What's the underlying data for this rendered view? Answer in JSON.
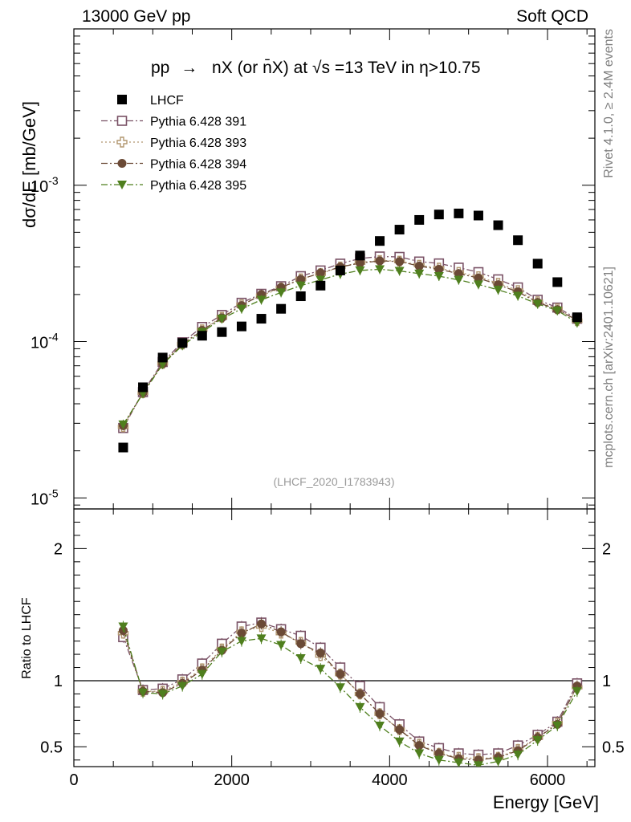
{
  "header": {
    "left": "13000 GeV pp",
    "right": "Soft QCD"
  },
  "side_labels": {
    "rivet": "Rivet 4.1.0, ≥ 2.4M events",
    "mcplots": "mcplots.cern.ch [arXiv:2401.10621]"
  },
  "chart_data": [
    {
      "type": "scatter",
      "title": "pp → nX (or n̄X) at √s=13 TeV in η>10.75",
      "title_parts": {
        "pre": "pp",
        "arrow": "→",
        "process": "nX (or n̄X) at ",
        "sqrt": "√s",
        "energy": "=13 TeV in",
        "eta": "η>10.75"
      },
      "ylabel": "dσ/dE [mb/GeV]",
      "yscale": "log",
      "ylim": [
        8.5e-06,
        0.01
      ],
      "xlim": [
        0,
        6600
      ],
      "ytick_labels": [
        {
          "base": "10",
          "exp": "-5",
          "value": 1e-05
        },
        {
          "base": "10",
          "exp": "-4",
          "value": 0.0001
        },
        {
          "base": "10",
          "exp": "-3",
          "value": 0.001
        }
      ],
      "watermark": "(LHCF_2020_I1783943)",
      "x": [
        625,
        875,
        1125,
        1375,
        1625,
        1875,
        2125,
        2375,
        2625,
        2875,
        3125,
        3375,
        3625,
        3875,
        4125,
        4375,
        4625,
        4875,
        5125,
        5375,
        5625,
        5875,
        6125,
        6375
      ],
      "series": [
        {
          "name": "LHCF",
          "color": "#000000",
          "marker": "filled-square",
          "line": "none",
          "values": [
            2.1e-05,
            5.1e-05,
            7.9e-05,
            9.8e-05,
            0.000109,
            0.000115,
            0.000125,
            0.00014,
            0.000162,
            0.000195,
            0.000228,
            0.000285,
            0.000355,
            0.00044,
            0.00052,
            0.0006,
            0.00065,
            0.00066,
            0.00064,
            0.000555,
            0.000445,
            0.000315,
            0.00024,
            0.000143
          ]
        },
        {
          "name": "Pythia 6.428 391",
          "color": "#7a5266",
          "marker": "open-square",
          "line": "dash-dot",
          "values": [
            2.8e-05,
            4.75e-05,
            7.4e-05,
            9.9e-05,
            0.000124,
            0.000148,
            0.000177,
            0.000202,
            0.000226,
            0.000262,
            0.000285,
            0.000315,
            0.00034,
            0.00035,
            0.000348,
            0.000325,
            0.000316,
            0.000297,
            0.000278,
            0.00025,
            0.000222,
            0.000185,
            0.000165,
            0.00014
          ]
        },
        {
          "name": "Pythia 6.428 393",
          "color": "#b29770",
          "marker": "open-plus",
          "line": "dotted",
          "values": [
            2.85e-05,
            4.7e-05,
            7.25e-05,
            9.65e-05,
            0.000119,
            0.000143,
            0.000172,
            0.000197,
            0.00022,
            0.000252,
            0.000272,
            0.0003,
            0.00032,
            0.00033,
            0.000327,
            0.000308,
            0.000295,
            0.000277,
            0.00026,
            0.000236,
            0.000212,
            0.00018,
            0.000162,
            0.000136
          ]
        },
        {
          "name": "Pythia 6.428 394",
          "color": "#6b4a36",
          "marker": "filled-circle",
          "line": "dash-dot",
          "values": [
            2.9e-05,
            4.7e-05,
            7.2e-05,
            9.6e-05,
            0.000118,
            0.000142,
            0.00017,
            0.0002,
            0.000222,
            0.00025,
            0.000275,
            0.0003,
            0.000318,
            0.000328,
            0.000325,
            0.000304,
            0.00029,
            0.000272,
            0.000255,
            0.000231,
            0.000208,
            0.000178,
            0.00016,
            0.000137
          ]
        },
        {
          "name": "Pythia 6.428 395",
          "color": "#4f7f1e",
          "marker": "filled-triangle-down",
          "line": "dash-dot",
          "values": [
            2.95e-05,
            4.65e-05,
            7.15e-05,
            9.45e-05,
            0.000115,
            0.00014,
            0.000162,
            0.000185,
            0.000206,
            0.000228,
            0.000248,
            0.00027,
            0.000285,
            0.00029,
            0.000283,
            0.000272,
            0.000262,
            0.000248,
            0.000232,
            0.000214,
            0.000196,
            0.000174,
            0.000158,
            0.000132
          ]
        }
      ]
    },
    {
      "type": "scatter",
      "xlabel": "Energy [GeV]",
      "ylabel": "Ratio to LHCF",
      "ylim": [
        0.35,
        2.3
      ],
      "xlim": [
        0,
        6600
      ],
      "reference_line": 1,
      "xticks": [
        0,
        2000,
        4000,
        6000
      ],
      "xtick_labels": [
        "0",
        "2000",
        "4000",
        "6000"
      ],
      "yticks": [
        0.5,
        1,
        2
      ],
      "ytick_labels": [
        "0.5",
        "1",
        "2"
      ],
      "x": [
        625,
        875,
        1125,
        1375,
        1625,
        1875,
        2125,
        2375,
        2625,
        2875,
        3125,
        3375,
        3625,
        3875,
        4125,
        4375,
        4625,
        4875,
        5125,
        5375,
        5625,
        5875,
        6125,
        6375
      ],
      "series": [
        {
          "name": "Pythia 6.428 391",
          "values": [
            1.33,
            0.93,
            0.94,
            1.01,
            1.13,
            1.28,
            1.41,
            1.44,
            1.39,
            1.34,
            1.25,
            1.1,
            0.96,
            0.8,
            0.67,
            0.54,
            0.49,
            0.45,
            0.44,
            0.45,
            0.51,
            0.59,
            0.69,
            0.98
          ]
        },
        {
          "name": "Pythia 6.428 393",
          "values": [
            1.36,
            0.92,
            0.92,
            0.99,
            1.09,
            1.24,
            1.37,
            1.41,
            1.36,
            1.29,
            1.19,
            1.05,
            0.9,
            0.75,
            0.63,
            0.52,
            0.45,
            0.42,
            0.41,
            0.42,
            0.48,
            0.57,
            0.68,
            0.95
          ]
        },
        {
          "name": "Pythia 6.428 394",
          "values": [
            1.38,
            0.92,
            0.91,
            0.98,
            1.08,
            1.23,
            1.36,
            1.43,
            1.37,
            1.28,
            1.21,
            1.05,
            0.9,
            0.75,
            0.63,
            0.51,
            0.45,
            0.41,
            0.4,
            0.42,
            0.47,
            0.57,
            0.67,
            0.96
          ]
        },
        {
          "name": "Pythia 6.428 395",
          "values": [
            1.41,
            0.91,
            0.9,
            0.96,
            1.05,
            1.22,
            1.3,
            1.32,
            1.27,
            1.17,
            1.09,
            0.95,
            0.8,
            0.66,
            0.54,
            0.45,
            0.4,
            0.38,
            0.36,
            0.39,
            0.44,
            0.55,
            0.66,
            0.92
          ]
        }
      ]
    }
  ]
}
